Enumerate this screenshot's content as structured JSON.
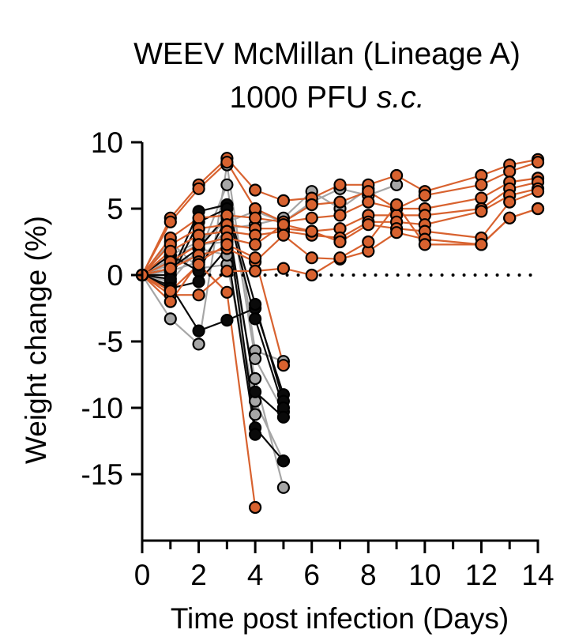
{
  "chart_data": {
    "type": "line",
    "title_line1": "WEEV McMillan (Lineage A)",
    "title_line2_prefix": "1000 PFU ",
    "title_line2_italic": "s.c.",
    "xlabel": "Time post infection (Days)",
    "ylabel": "Weight change (%)",
    "xlim": [
      0,
      14
    ],
    "ylim": [
      -20,
      10
    ],
    "x_ticks": [
      0,
      2,
      4,
      6,
      8,
      10,
      12,
      14
    ],
    "x_minor_ticks": [
      1,
      3,
      5,
      7,
      9,
      11,
      13
    ],
    "y_ticks": [
      10,
      5,
      0,
      -5,
      -10,
      -15
    ],
    "y_tick_labels": [
      "10",
      "5",
      "0",
      "-5",
      "-10",
      "-15"
    ],
    "baseline": {
      "y": 0,
      "x_from": 2,
      "x_to": 14,
      "style": "dotted"
    },
    "colors": {
      "survivor": "#d8622f",
      "fatal_black": "#0a0a0a",
      "fatal_gray": "#a6a6a6",
      "marker_edge": "#000000",
      "baseline": "#000000"
    },
    "series": [
      {
        "group": "survivor",
        "x": [
          0,
          1,
          2,
          3,
          4,
          5,
          6,
          7,
          8,
          9,
          10,
          12,
          13,
          14
        ],
        "y": [
          0,
          4.3,
          6.8,
          8.8,
          6.4,
          5.6,
          5.8,
          6.8,
          6.8,
          7.5,
          6.3,
          7.5,
          8.3,
          8.7
        ]
      },
      {
        "group": "survivor",
        "x": [
          0,
          1,
          2,
          3,
          4,
          5,
          6,
          7,
          8,
          9,
          10,
          12,
          13,
          14
        ],
        "y": [
          0,
          4.0,
          6.5,
          8.5,
          5.0,
          4.0,
          5.3,
          5.5,
          6.3,
          5.0,
          6.0,
          6.8,
          7.8,
          8.5
        ]
      },
      {
        "group": "survivor",
        "x": [
          0,
          1,
          2,
          3,
          4,
          5,
          6,
          7,
          8,
          9,
          10,
          12,
          13,
          14
        ],
        "y": [
          0,
          2.8,
          4.3,
          4.5,
          4.3,
          4.0,
          4.3,
          4.5,
          5.5,
          5.0,
          5.0,
          5.8,
          7.0,
          7.3
        ]
      },
      {
        "group": "survivor",
        "x": [
          0,
          1,
          2,
          3,
          4,
          5,
          6,
          7,
          8,
          9,
          10,
          12,
          13,
          14
        ],
        "y": [
          0,
          2.3,
          3.5,
          3.8,
          3.5,
          3.5,
          3.3,
          3.5,
          4.5,
          4.5,
          4.5,
          5.0,
          6.5,
          7.0
        ]
      },
      {
        "group": "survivor",
        "x": [
          0,
          1,
          2,
          3,
          4,
          5,
          6,
          7,
          8,
          9,
          10,
          12,
          13,
          14
        ],
        "y": [
          0,
          1.8,
          3.0,
          3.3,
          3.0,
          3.3,
          3.0,
          2.8,
          4.0,
          4.0,
          3.8,
          4.8,
          6.0,
          6.5
        ]
      },
      {
        "group": "survivor",
        "x": [
          0,
          1,
          2,
          3,
          4,
          5,
          6,
          7,
          8,
          9,
          10,
          12,
          13,
          14
        ],
        "y": [
          0,
          1.0,
          2.3,
          2.8,
          2.3,
          3.8,
          3.3,
          2.5,
          3.8,
          3.5,
          3.3,
          2.8,
          5.5,
          6.3
        ]
      },
      {
        "group": "survivor",
        "x": [
          0,
          1,
          2,
          3,
          4,
          5,
          6,
          7,
          8,
          9,
          10,
          12,
          13,
          14
        ],
        "y": [
          0,
          0.5,
          1.5,
          2.0,
          1.0,
          3.0,
          1.3,
          1.2,
          1.8,
          3.2,
          2.7,
          2.3,
          4.3,
          5.0
        ]
      },
      {
        "group": "survivor",
        "x": [
          0,
          1,
          2,
          3,
          4,
          5,
          6,
          7,
          8,
          9,
          10,
          12,
          13,
          14
        ],
        "y": [
          0,
          -1.5,
          -1.5,
          0.3,
          0.3,
          0.5,
          0.0,
          1.3,
          2.5,
          5.3,
          2.3,
          2.3,
          4.3,
          5.0
        ]
      },
      {
        "group": "survivor",
        "x": [
          0,
          1,
          2,
          3,
          4,
          5
        ],
        "y": [
          0,
          -2.0,
          1.0,
          2.3,
          1.3,
          -6.8
        ]
      },
      {
        "group": "survivor",
        "x": [
          0,
          1,
          2,
          3,
          4
        ],
        "y": [
          0,
          -1.2,
          0.8,
          -1.3,
          -17.5
        ]
      },
      {
        "group": "fatal_gray",
        "x": [
          0,
          1,
          2,
          3,
          4,
          5
        ],
        "y": [
          0,
          -3.3,
          -5.2,
          8.3,
          -5.7,
          -6.5
        ]
      },
      {
        "group": "fatal_gray",
        "x": [
          0,
          1,
          2,
          3,
          4,
          5
        ],
        "y": [
          0,
          0.8,
          1.5,
          6.8,
          -6.3,
          -10.3
        ]
      },
      {
        "group": "fatal_gray",
        "x": [
          0,
          1,
          2,
          3,
          4,
          5
        ],
        "y": [
          0,
          1.2,
          2.3,
          2.5,
          -7.8,
          -16.0
        ]
      },
      {
        "group": "fatal_gray",
        "x": [
          0,
          1,
          2,
          3,
          4,
          5
        ],
        "y": [
          0,
          2.5,
          0.5,
          0.8,
          -9.5,
          -14.0
        ]
      },
      {
        "group": "fatal_gray",
        "x": [
          0,
          1,
          2,
          3,
          4
        ],
        "y": [
          0,
          -0.5,
          2.0,
          1.5,
          -10.5
        ]
      },
      {
        "group": "fatal_gray",
        "x": [
          0,
          1,
          2,
          3,
          4,
          5,
          6,
          7,
          8
        ],
        "y": [
          0,
          0.3,
          1.0,
          3.5,
          3.8,
          4.3,
          6.3,
          5.0,
          6.5
        ]
      },
      {
        "group": "fatal_gray",
        "x": [
          0,
          1,
          2,
          3,
          4,
          5,
          6,
          7,
          8,
          9
        ],
        "y": [
          0,
          1.5,
          2.5,
          4.0,
          4.8,
          4.0,
          5.5,
          6.5,
          6.0,
          6.8
        ]
      },
      {
        "group": "fatal_black",
        "x": [
          0,
          1,
          2,
          3,
          4,
          5
        ],
        "y": [
          0,
          -0.8,
          -4.2,
          -3.4,
          -2.5,
          -9.0
        ]
      },
      {
        "group": "fatal_black",
        "x": [
          0,
          1,
          2,
          3,
          4,
          5
        ],
        "y": [
          0,
          0.0,
          4.8,
          5.3,
          -2.2,
          -9.5
        ]
      },
      {
        "group": "fatal_black",
        "x": [
          0,
          1,
          2,
          3,
          4,
          5
        ],
        "y": [
          0,
          -0.3,
          4.0,
          5.0,
          -3.3,
          -10.0
        ]
      },
      {
        "group": "fatal_black",
        "x": [
          0,
          1,
          2,
          3,
          4,
          5
        ],
        "y": [
          0,
          0.5,
          2.0,
          4.5,
          -8.8,
          -10.7
        ]
      },
      {
        "group": "fatal_black",
        "x": [
          0,
          1,
          2,
          3,
          4,
          5
        ],
        "y": [
          0,
          1.5,
          0.3,
          4.3,
          -11.5,
          -14.0
        ]
      },
      {
        "group": "fatal_black",
        "x": [
          0,
          1,
          2,
          3,
          4
        ],
        "y": [
          0,
          -1.0,
          -0.5,
          2.0,
          -12.0
        ]
      }
    ]
  }
}
